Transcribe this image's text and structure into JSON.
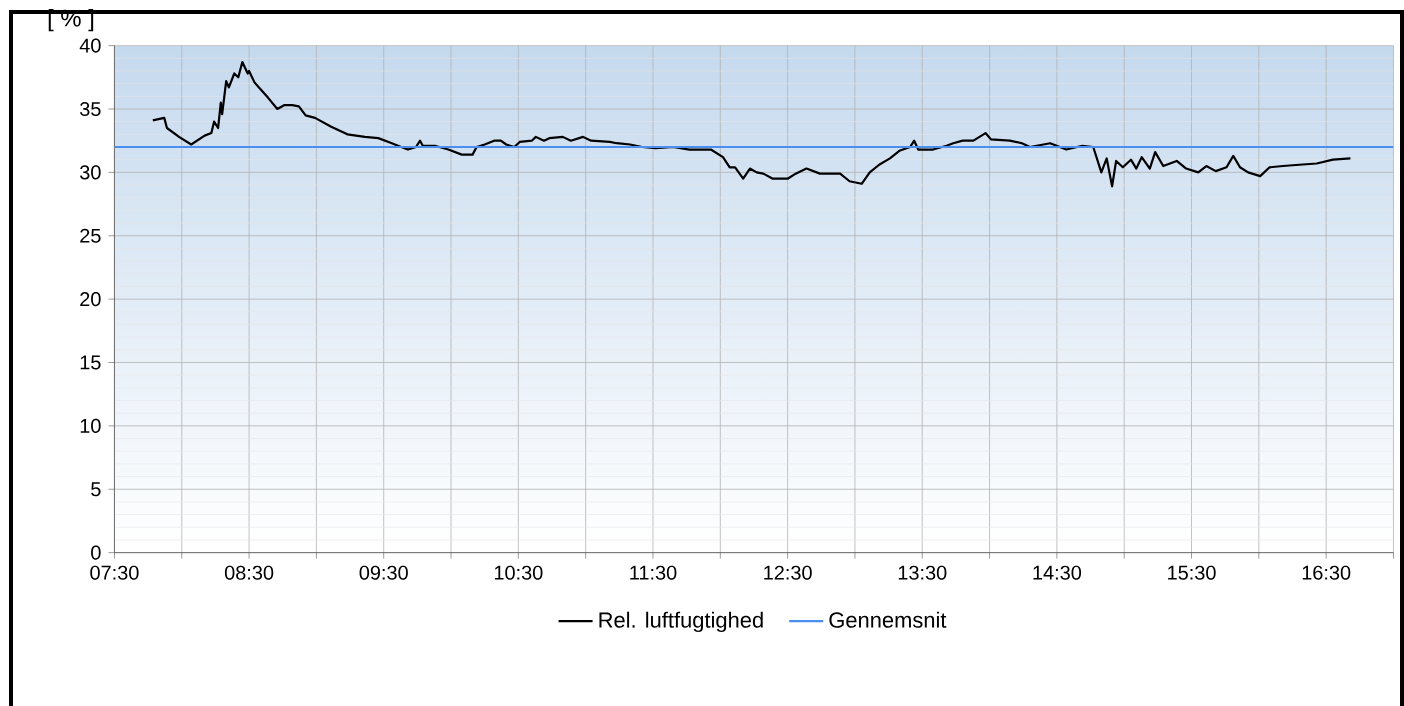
{
  "chart_data": {
    "type": "line",
    "ylabel": "[ % ]",
    "x": [
      7.785,
      7.87,
      7.89,
      7.98,
      8.07,
      8.17,
      8.22,
      8.24,
      8.27,
      8.29,
      8.3,
      8.33,
      8.35,
      8.39,
      8.42,
      8.45,
      8.49,
      8.5,
      8.54,
      8.59,
      8.64,
      8.71,
      8.76,
      8.82,
      8.87,
      8.92,
      8.99,
      9.11,
      9.23,
      9.36,
      9.46,
      9.56,
      9.63,
      9.68,
      9.74,
      9.77,
      9.79,
      9.88,
      9.98,
      10.08,
      10.16,
      10.19,
      10.25,
      10.32,
      10.37,
      10.41,
      10.47,
      10.51,
      10.6,
      10.63,
      10.69,
      10.73,
      10.83,
      10.89,
      10.98,
      11.04,
      11.18,
      11.23,
      11.33,
      11.42,
      11.52,
      11.65,
      11.77,
      11.87,
      11.93,
      12.02,
      12.07,
      12.11,
      12.17,
      12.22,
      12.27,
      12.32,
      12.39,
      12.5,
      12.56,
      12.64,
      12.74,
      12.81,
      12.89,
      12.96,
      13.05,
      13.11,
      13.18,
      13.26,
      13.33,
      13.41,
      13.44,
      13.47,
      13.58,
      13.68,
      13.73,
      13.8,
      13.88,
      13.97,
      14.01,
      14.15,
      14.24,
      14.3,
      14.45,
      14.57,
      14.69,
      14.77,
      14.83,
      14.87,
      14.91,
      14.94,
      14.99,
      15.05,
      15.09,
      15.13,
      15.19,
      15.23,
      15.29,
      15.39,
      15.46,
      15.55,
      15.61,
      15.68,
      15.76,
      15.81,
      15.86,
      15.92,
      16.01,
      16.08,
      16.18,
      16.3,
      16.43,
      16.55,
      16.68
    ],
    "series": [
      {
        "name": "Rel. luftfugtighed",
        "color": "#000000",
        "values": [
          34.1,
          34.3,
          33.5,
          32.8,
          32.2,
          32.9,
          33.1,
          34.0,
          33.5,
          35.5,
          34.6,
          37.2,
          36.7,
          37.8,
          37.5,
          38.7,
          37.8,
          38.0,
          37.1,
          36.5,
          35.9,
          35.0,
          35.3,
          35.3,
          35.2,
          34.5,
          34.3,
          33.6,
          33.0,
          32.8,
          32.7,
          32.3,
          32.0,
          31.8,
          32.0,
          32.5,
          32.1,
          32.1,
          31.8,
          31.4,
          31.4,
          32.0,
          32.2,
          32.5,
          32.5,
          32.2,
          32.0,
          32.4,
          32.5,
          32.8,
          32.5,
          32.7,
          32.8,
          32.5,
          32.8,
          32.5,
          32.4,
          32.3,
          32.2,
          32.0,
          31.9,
          32.0,
          31.8,
          31.8,
          31.8,
          31.2,
          30.4,
          30.4,
          29.5,
          30.3,
          30.0,
          29.9,
          29.5,
          29.5,
          29.9,
          30.3,
          29.9,
          29.9,
          29.9,
          29.3,
          29.1,
          30.0,
          30.6,
          31.1,
          31.7,
          32.0,
          32.5,
          31.8,
          31.8,
          32.1,
          32.3,
          32.5,
          32.5,
          33.1,
          32.6,
          32.5,
          32.3,
          32.0,
          32.3,
          31.8,
          32.1,
          32.0,
          30.0,
          31.1,
          28.9,
          30.9,
          30.4,
          31.0,
          30.3,
          31.2,
          30.3,
          31.6,
          30.5,
          30.9,
          30.3,
          30.0,
          30.5,
          30.1,
          30.4,
          31.3,
          30.4,
          30.0,
          29.7,
          30.4,
          30.5,
          30.6,
          30.7,
          31.0,
          31.1
        ]
      }
    ],
    "ref_lines": [
      {
        "axis": "y",
        "value": 32,
        "label": "Gennemsnit",
        "color": "#4a8ff0",
        "line_style": "solid"
      }
    ],
    "xlim": [
      7.5,
      17.0
    ],
    "xticks": [
      {
        "value": 7.5,
        "label": "07:30"
      },
      {
        "value": 8.0,
        "label": null
      },
      {
        "value": 8.5,
        "label": "08:30"
      },
      {
        "value": 9.0,
        "label": null
      },
      {
        "value": 9.5,
        "label": "09:30"
      },
      {
        "value": 10.0,
        "label": null
      },
      {
        "value": 10.5,
        "label": "10:30"
      },
      {
        "value": 11.0,
        "label": null
      },
      {
        "value": 11.5,
        "label": "11:30"
      },
      {
        "value": 12.0,
        "label": null
      },
      {
        "value": 12.5,
        "label": "12:30"
      },
      {
        "value": 13.0,
        "label": null
      },
      {
        "value": 13.5,
        "label": "13:30"
      },
      {
        "value": 14.0,
        "label": null
      },
      {
        "value": 14.5,
        "label": "14:30"
      },
      {
        "value": 15.0,
        "label": null
      },
      {
        "value": 15.5,
        "label": "15:30"
      },
      {
        "value": 16.0,
        "label": null
      },
      {
        "value": 16.5,
        "label": "16:30"
      },
      {
        "value": 17.0,
        "label": null
      }
    ],
    "ylim": [
      0,
      40
    ],
    "yticks": [
      0,
      5,
      10,
      15,
      20,
      25,
      30,
      35,
      40
    ],
    "grid": true,
    "legend": "bottom",
    "marker": "none",
    "line_style": "solid"
  }
}
